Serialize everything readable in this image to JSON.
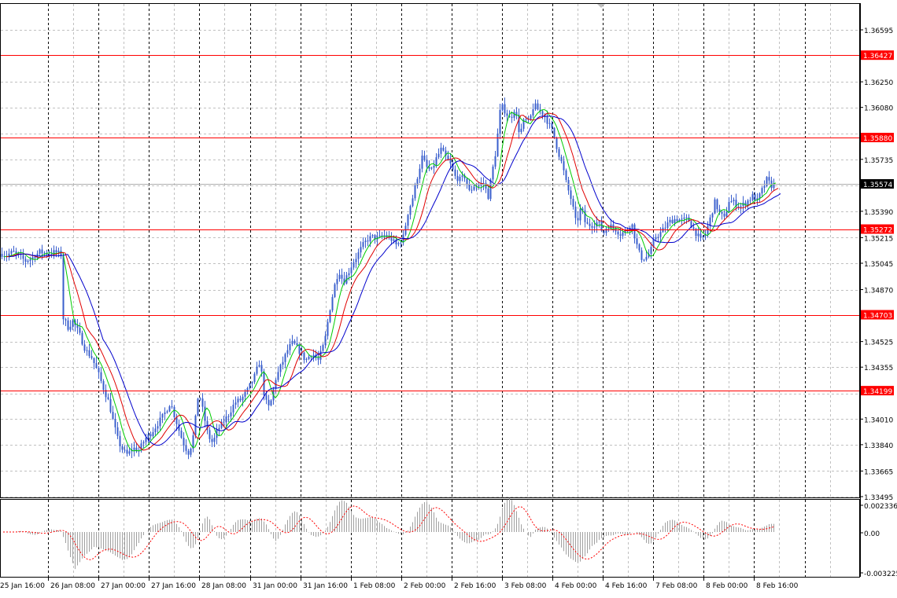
{
  "chart_data": [
    {
      "type": "candlestick",
      "price_axis": {
        "ticks": [
          "1.36595",
          "1.36250",
          "1.36080",
          "1.35735",
          "1.35390",
          "1.35215",
          "1.35045",
          "1.34870",
          "1.34525",
          "1.34355",
          "1.34010",
          "1.33840",
          "1.33665",
          "1.33495"
        ],
        "hidden_ticks": [
          "1.35905",
          "1.35560",
          "1.34700",
          "1.34180"
        ],
        "range": [
          1.33495,
          1.36595
        ],
        "grid": true
      },
      "current_price": {
        "value": 1.35574,
        "label": "1.35574",
        "color": "#000000"
      },
      "levels": [
        {
          "value": 1.36427,
          "label": "1.36427",
          "color": "#ff0000"
        },
        {
          "value": 1.3588,
          "label": "1.35880",
          "color": "#ff0000"
        },
        {
          "value": 1.35272,
          "label": "1.35272",
          "color": "#ff0000"
        },
        {
          "value": 1.34703,
          "label": "1.34703",
          "color": "#ff0000"
        },
        {
          "value": 1.34199,
          "label": "1.34199",
          "color": "#ff0000"
        }
      ],
      "time_axis": {
        "labels": [
          "25 Jan 16:00",
          "26 Jan 08:00",
          "27 Jan 00:00",
          "27 Jan 16:00",
          "28 Jan 08:00",
          "31 Jan 00:00",
          "31 Jan 16:00",
          "1 Feb 08:00",
          "2 Feb 00:00",
          "2 Feb 16:00",
          "3 Feb 08:00",
          "4 Feb 00:00",
          "4 Feb 16:00",
          "7 Feb 08:00",
          "8 Feb 00:00",
          "8 Feb 16:00"
        ],
        "separator_count": 17
      },
      "price_path": [
        [
          0,
          1.3511
        ],
        [
          8,
          1.351
        ],
        [
          16,
          1.3512
        ],
        [
          24,
          1.3509
        ],
        [
          32,
          1.3506
        ],
        [
          40,
          1.3508
        ],
        [
          50,
          1.3512
        ],
        [
          60,
          1.3511
        ],
        [
          70,
          1.3512
        ],
        [
          78,
          1.351
        ],
        [
          80,
          1.3468
        ],
        [
          86,
          1.3462
        ],
        [
          92,
          1.3466
        ],
        [
          100,
          1.3458
        ],
        [
          108,
          1.3447
        ],
        [
          116,
          1.3442
        ],
        [
          124,
          1.3432
        ],
        [
          132,
          1.342
        ],
        [
          138,
          1.3412
        ],
        [
          144,
          1.3398
        ],
        [
          150,
          1.3386
        ],
        [
          156,
          1.338
        ],
        [
          162,
          1.3377
        ],
        [
          168,
          1.3382
        ],
        [
          176,
          1.338
        ],
        [
          184,
          1.3388
        ],
        [
          192,
          1.3392
        ],
        [
          200,
          1.3398
        ],
        [
          208,
          1.3404
        ],
        [
          216,
          1.3412
        ],
        [
          222,
          1.3402
        ],
        [
          228,
          1.3392
        ],
        [
          234,
          1.3383
        ],
        [
          240,
          1.3378
        ],
        [
          246,
          1.3392
        ],
        [
          252,
          1.342
        ],
        [
          258,
          1.3405
        ],
        [
          264,
          1.339
        ],
        [
          270,
          1.3385
        ],
        [
          276,
          1.3394
        ],
        [
          282,
          1.3398
        ],
        [
          290,
          1.3404
        ],
        [
          298,
          1.3412
        ],
        [
          306,
          1.3414
        ],
        [
          314,
          1.342
        ],
        [
          322,
          1.3428
        ],
        [
          330,
          1.344
        ],
        [
          336,
          1.3414
        ],
        [
          342,
          1.3408
        ],
        [
          350,
          1.3428
        ],
        [
          358,
          1.3438
        ],
        [
          366,
          1.3448
        ],
        [
          372,
          1.3452
        ],
        [
          380,
          1.3446
        ],
        [
          388,
          1.344
        ],
        [
          396,
          1.3445
        ],
        [
          404,
          1.344
        ],
        [
          412,
          1.3452
        ],
        [
          418,
          1.3472
        ],
        [
          424,
          1.3488
        ],
        [
          430,
          1.35
        ],
        [
          436,
          1.3492
        ],
        [
          442,
          1.3498
        ],
        [
          448,
          1.3505
        ],
        [
          454,
          1.351
        ],
        [
          460,
          1.3516
        ],
        [
          466,
          1.352
        ],
        [
          472,
          1.3522
        ],
        [
          480,
          1.3521
        ],
        [
          488,
          1.3523
        ],
        [
          496,
          1.3521
        ],
        [
          504,
          1.3516
        ],
        [
          512,
          1.3522
        ],
        [
          518,
          1.3538
        ],
        [
          524,
          1.3548
        ],
        [
          530,
          1.3562
        ],
        [
          536,
          1.3575
        ],
        [
          542,
          1.3568
        ],
        [
          548,
          1.3566
        ],
        [
          554,
          1.3574
        ],
        [
          560,
          1.358
        ],
        [
          566,
          1.3575
        ],
        [
          572,
          1.357
        ],
        [
          578,
          1.3562
        ],
        [
          584,
          1.356
        ],
        [
          590,
          1.3562
        ],
        [
          596,
          1.3552
        ],
        [
          602,
          1.3556
        ],
        [
          608,
          1.3556
        ],
        [
          614,
          1.3558
        ],
        [
          620,
          1.3549
        ],
        [
          624,
          1.3562
        ],
        [
          630,
          1.358
        ],
        [
          636,
          1.361
        ],
        [
          642,
          1.3605
        ],
        [
          648,
          1.36
        ],
        [
          654,
          1.3608
        ],
        [
          660,
          1.359
        ],
        [
          666,
          1.36
        ],
        [
          672,
          1.3598
        ],
        [
          678,
          1.361
        ],
        [
          684,
          1.3606
        ],
        [
          690,
          1.3604
        ],
        [
          696,
          1.3598
        ],
        [
          702,
          1.3592
        ],
        [
          708,
          1.358
        ],
        [
          714,
          1.357
        ],
        [
          720,
          1.3556
        ],
        [
          726,
          1.3546
        ],
        [
          732,
          1.353
        ],
        [
          738,
          1.3542
        ],
        [
          744,
          1.353
        ],
        [
          752,
          1.353
        ],
        [
          760,
          1.3532
        ],
        [
          766,
          1.3524
        ],
        [
          772,
          1.353
        ],
        [
          780,
          1.3528
        ],
        [
          788,
          1.3524
        ],
        [
          796,
          1.3526
        ],
        [
          802,
          1.3532
        ],
        [
          808,
          1.3518
        ],
        [
          814,
          1.3508
        ],
        [
          820,
          1.3508
        ],
        [
          826,
          1.3512
        ],
        [
          832,
          1.3522
        ],
        [
          838,
          1.3524
        ],
        [
          844,
          1.3528
        ],
        [
          850,
          1.3532
        ],
        [
          858,
          1.3534
        ],
        [
          866,
          1.3533
        ],
        [
          874,
          1.3534
        ],
        [
          882,
          1.3526
        ],
        [
          890,
          1.352
        ],
        [
          896,
          1.3524
        ],
        [
          902,
          1.3534
        ],
        [
          908,
          1.3545
        ],
        [
          914,
          1.3538
        ],
        [
          920,
          1.3534
        ],
        [
          926,
          1.3546
        ],
        [
          932,
          1.3545
        ],
        [
          940,
          1.3542
        ],
        [
          948,
          1.3545
        ],
        [
          956,
          1.3549
        ],
        [
          962,
          1.3546
        ],
        [
          968,
          1.3553
        ],
        [
          974,
          1.356
        ],
        [
          980,
          1.3556
        ],
        [
          985,
          1.3557
        ]
      ],
      "oscillator": {
        "ticks": [
          "0.002336",
          "0.00",
          "-0.003225"
        ],
        "range": [
          -0.003225,
          0.002336
        ],
        "histogram_color": "#a0a0a0",
        "signal_color": "#ff0000"
      }
    }
  ]
}
